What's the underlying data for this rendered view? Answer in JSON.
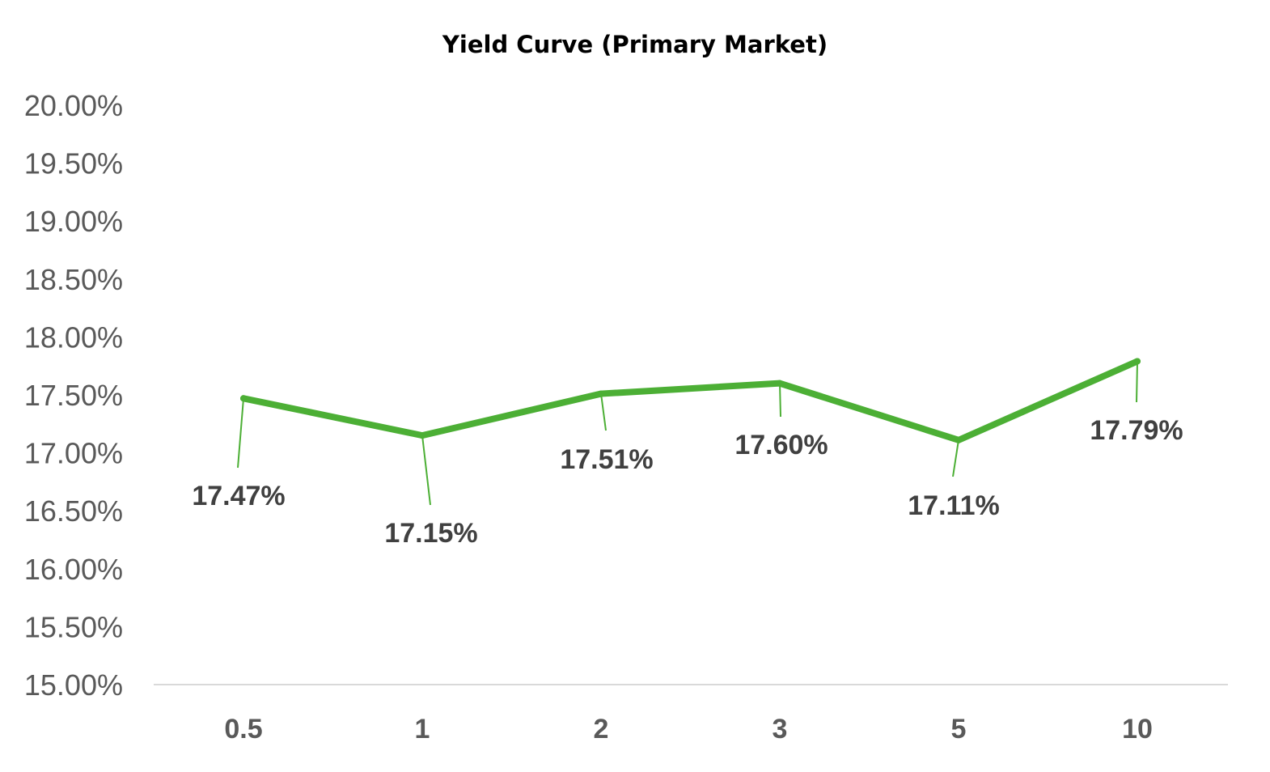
{
  "chart_data": {
    "type": "line",
    "title": "Yield Curve (Primary Market)",
    "xlabel": "",
    "ylabel": "",
    "categories": [
      "0.5",
      "1",
      "2",
      "3",
      "5",
      "10"
    ],
    "series": [
      {
        "values": [
          17.47,
          17.15,
          17.51,
          17.6,
          17.11,
          17.79
        ],
        "labels": [
          "17.47%",
          "17.15%",
          "17.51%",
          "17.60%",
          "17.11%",
          "17.79%"
        ],
        "color": "#4CAF35"
      }
    ],
    "ylim": [
      15.0,
      20.0
    ],
    "y_ticks": [
      "15.00%",
      "15.50%",
      "16.00%",
      "16.50%",
      "17.00%",
      "17.50%",
      "18.00%",
      "18.50%",
      "19.00%",
      "19.50%",
      "20.00%"
    ],
    "grid": false,
    "legend": "none",
    "axis_color": "#D9D9D9"
  }
}
